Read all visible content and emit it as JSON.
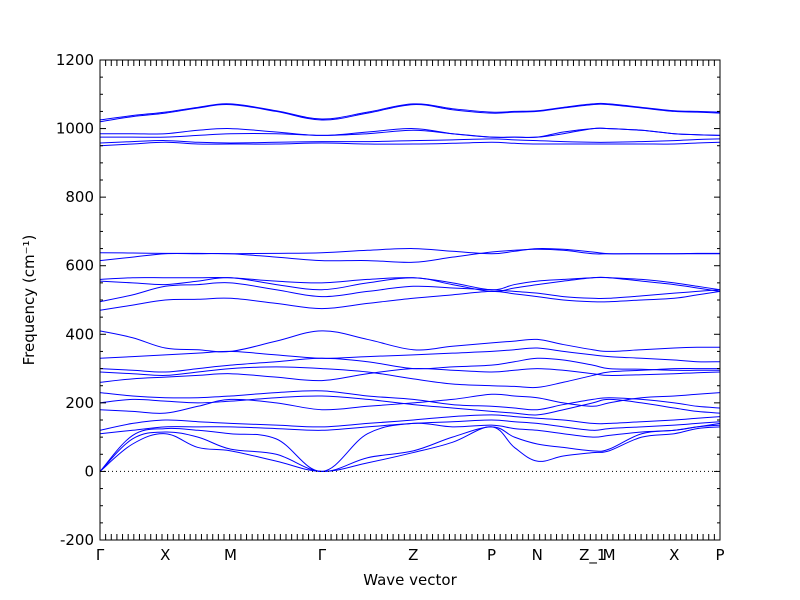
{
  "chart_data": {
    "type": "line",
    "xlabel": "Wave vector",
    "ylabel": "Frequency (cm⁻¹)",
    "ylim": [
      -200,
      1200
    ],
    "yticks": [
      -200,
      0,
      200,
      400,
      600,
      800,
      1000,
      1200
    ],
    "grid": false,
    "colors": {
      "bands": "#0000ff",
      "axes": "#000000"
    },
    "kpoints": [
      {
        "label": "Γ",
        "pos": 0.0
      },
      {
        "label": "X",
        "pos": 1.0
      },
      {
        "label": "M",
        "pos": 2.0
      },
      {
        "label": "Γ",
        "pos": 3.4
      },
      {
        "label": "Z",
        "pos": 4.8
      },
      {
        "label": "P",
        "pos": 6.0
      },
      {
        "label": "N",
        "pos": 6.7
      },
      {
        "label": "Z_1",
        "pos": 7.55
      },
      {
        "label": "M",
        "pos": 7.8
      },
      {
        "label": "X",
        "pos": 8.8
      },
      {
        "label": "P",
        "pos": 9.5
      }
    ],
    "x": [
      0.0,
      0.5,
      1.0,
      1.5,
      2.0,
      2.7,
      3.4,
      4.1,
      4.8,
      5.4,
      6.0,
      6.35,
      6.7,
      7.1,
      7.55,
      7.8,
      8.3,
      8.8,
      9.15,
      9.5
    ],
    "series": [
      {
        "values": [
          0,
          80,
          110,
          70,
          60,
          30,
          0,
          25,
          55,
          85,
          130,
          70,
          30,
          45,
          55,
          60,
          100,
          110,
          125,
          130
        ]
      },
      {
        "values": [
          0,
          95,
          115,
          100,
          65,
          50,
          0,
          40,
          60,
          100,
          130,
          100,
          80,
          70,
          60,
          65,
          110,
          120,
          130,
          135
        ]
      },
      {
        "values": [
          0,
          105,
          125,
          120,
          110,
          95,
          0,
          110,
          140,
          130,
          135,
          125,
          120,
          110,
          100,
          105,
          115,
          120,
          130,
          140
        ]
      },
      {
        "values": [
          110,
          120,
          130,
          130,
          130,
          125,
          120,
          130,
          140,
          145,
          150,
          145,
          140,
          130,
          120,
          125,
          130,
          135,
          140,
          145
        ]
      },
      {
        "values": [
          120,
          140,
          150,
          145,
          140,
          135,
          130,
          140,
          150,
          160,
          165,
          160,
          155,
          150,
          140,
          140,
          145,
          150,
          155,
          160
        ]
      },
      {
        "values": [
          180,
          175,
          170,
          190,
          210,
          200,
          180,
          190,
          200,
          210,
          225,
          220,
          215,
          200,
          190,
          200,
          215,
          220,
          225,
          230
        ]
      },
      {
        "values": [
          200,
          210,
          205,
          200,
          205,
          215,
          220,
          210,
          195,
          185,
          175,
          170,
          165,
          180,
          200,
          210,
          200,
          185,
          175,
          170
        ]
      },
      {
        "values": [
          230,
          220,
          215,
          215,
          220,
          230,
          235,
          220,
          210,
          195,
          190,
          185,
          180,
          195,
          210,
          215,
          210,
          200,
          190,
          185
        ]
      },
      {
        "values": [
          260,
          270,
          275,
          280,
          285,
          275,
          265,
          285,
          300,
          295,
          290,
          295,
          300,
          295,
          285,
          280,
          282,
          285,
          288,
          290
        ]
      },
      {
        "values": [
          290,
          285,
          280,
          290,
          300,
          305,
          300,
          290,
          270,
          255,
          250,
          248,
          245,
          260,
          280,
          290,
          295,
          300,
          300,
          300
        ]
      },
      {
        "values": [
          300,
          295,
          290,
          300,
          310,
          320,
          330,
          320,
          300,
          305,
          310,
          320,
          330,
          325,
          310,
          300,
          298,
          295,
          295,
          295
        ]
      },
      {
        "values": [
          330,
          335,
          340,
          345,
          350,
          340,
          330,
          335,
          340,
          345,
          350,
          355,
          360,
          350,
          340,
          335,
          330,
          325,
          320,
          320
        ]
      },
      {
        "values": [
          410,
          390,
          360,
          355,
          350,
          380,
          410,
          385,
          355,
          365,
          375,
          380,
          385,
          370,
          355,
          350,
          355,
          360,
          362,
          362
        ]
      },
      {
        "values": [
          470,
          485,
          500,
          502,
          505,
          490,
          475,
          490,
          505,
          515,
          525,
          518,
          510,
          500,
          495,
          495,
          500,
          505,
          515,
          525
        ]
      },
      {
        "values": [
          495,
          515,
          540,
          545,
          550,
          530,
          510,
          525,
          540,
          535,
          530,
          525,
          520,
          510,
          505,
          505,
          512,
          520,
          525,
          530
        ]
      },
      {
        "values": [
          555,
          550,
          545,
          555,
          565,
          545,
          530,
          550,
          565,
          545,
          525,
          535,
          545,
          555,
          565,
          565,
          555,
          545,
          535,
          525
        ]
      },
      {
        "values": [
          560,
          565,
          565,
          565,
          565,
          555,
          550,
          560,
          565,
          550,
          530,
          545,
          555,
          560,
          565,
          565,
          560,
          550,
          540,
          530
        ]
      },
      {
        "values": [
          615,
          625,
          635,
          635,
          635,
          625,
          615,
          615,
          610,
          625,
          640,
          645,
          648,
          645,
          635,
          635,
          635,
          635,
          635,
          635
        ]
      },
      {
        "values": [
          638,
          637,
          636,
          636,
          635,
          636,
          638,
          645,
          650,
          642,
          635,
          642,
          650,
          648,
          640,
          635,
          635,
          635,
          636,
          636
        ]
      },
      {
        "values": [
          950,
          955,
          960,
          955,
          955,
          955,
          958,
          955,
          955,
          957,
          960,
          957,
          955,
          955,
          955,
          955,
          955,
          955,
          958,
          960
        ]
      },
      {
        "values": [
          958,
          962,
          965,
          960,
          958,
          960,
          962,
          962,
          965,
          967,
          970,
          967,
          965,
          962,
          960,
          960,
          962,
          965,
          968,
          970
        ]
      },
      {
        "values": [
          975,
          975,
          975,
          980,
          985,
          985,
          980,
          985,
          995,
          985,
          975,
          975,
          975,
          985,
          1000,
          1000,
          995,
          985,
          982,
          980
        ]
      },
      {
        "values": [
          985,
          985,
          985,
          995,
          1000,
          990,
          980,
          990,
          1000,
          985,
          975,
          975,
          975,
          990,
          1000,
          1000,
          995,
          985,
          982,
          980
        ]
      },
      {
        "values": [
          1020,
          1035,
          1045,
          1060,
          1070,
          1050,
          1025,
          1045,
          1070,
          1055,
          1045,
          1048,
          1050,
          1060,
          1070,
          1070,
          1060,
          1050,
          1048,
          1045
        ]
      },
      {
        "values": [
          1025,
          1038,
          1048,
          1062,
          1072,
          1052,
          1028,
          1048,
          1072,
          1058,
          1048,
          1050,
          1052,
          1062,
          1072,
          1072,
          1062,
          1052,
          1050,
          1048
        ]
      }
    ]
  }
}
